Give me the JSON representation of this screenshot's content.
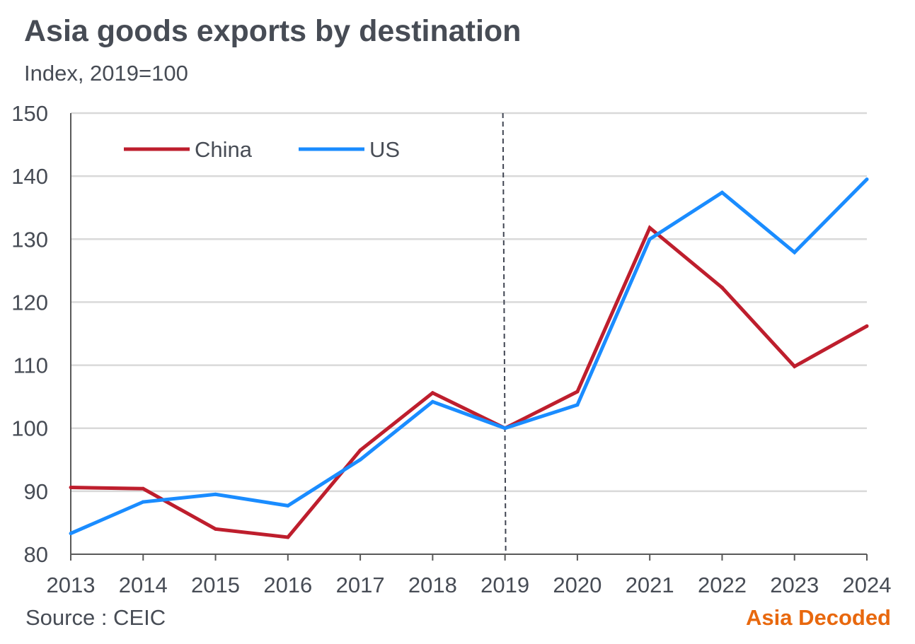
{
  "header": {
    "title": "Asia goods exports by destination",
    "subtitle": "Index, 2019=100"
  },
  "footer": {
    "source": "Source : CEIC",
    "brand": "Asia Decoded",
    "brand_color": "#e8680e"
  },
  "chart_data": {
    "type": "line",
    "title": "Asia goods exports by destination",
    "subtitle": "Index, 2019=100",
    "xlabel": "",
    "ylabel": "",
    "x": [
      "2013",
      "2014",
      "2015",
      "2016",
      "2017",
      "2018",
      "2019",
      "2020",
      "2021",
      "2022",
      "2023",
      "2024"
    ],
    "ylim": [
      80,
      150
    ],
    "yticks": [
      80,
      90,
      100,
      110,
      120,
      130,
      140,
      150
    ],
    "grid": "horizontal",
    "legend_position": "top-left",
    "reference_line": {
      "x": "2019",
      "style": "dashed"
    },
    "series": [
      {
        "name": "China",
        "color": "#be1e2d",
        "values": [
          90.6,
          90.4,
          84.0,
          82.7,
          96.5,
          105.6,
          100.0,
          105.8,
          131.8,
          122.3,
          109.8,
          116.2
        ]
      },
      {
        "name": "US",
        "color": "#1a8cff",
        "values": [
          83.3,
          88.3,
          89.5,
          87.7,
          95.0,
          104.2,
          100.0,
          103.7,
          130.0,
          137.4,
          127.9,
          139.5
        ]
      }
    ]
  }
}
